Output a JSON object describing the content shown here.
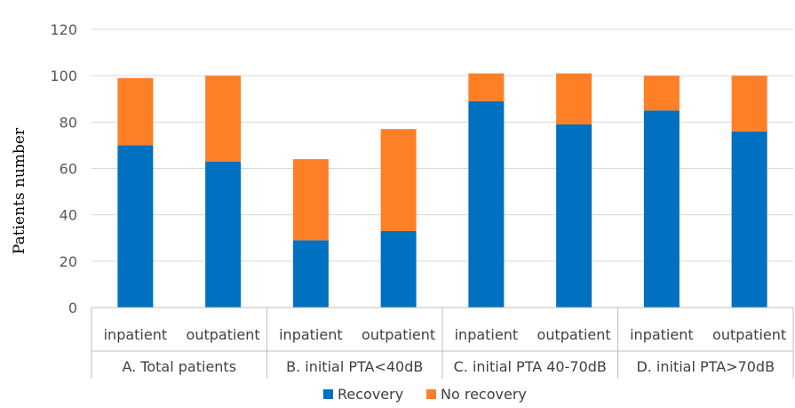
{
  "chart_data": {
    "type": "bar",
    "stacked": true,
    "title": "",
    "ylabel": "Patients number",
    "xlabel": "",
    "ylim": [
      0,
      120
    ],
    "yticks": [
      0,
      20,
      40,
      60,
      80,
      100,
      120
    ],
    "grid": true,
    "legend_position": "bottom",
    "categories": [
      "inpatient",
      "outpatient",
      "inpatient",
      "outpatient",
      "inpatient",
      "outpatient",
      "inpatient",
      "outpatient"
    ],
    "groups": [
      {
        "label": "A. Total patients",
        "span": 2
      },
      {
        "label": "B. initial PTA<40dB",
        "span": 2
      },
      {
        "label": "C. initial PTA 40-70dB",
        "span": 2
      },
      {
        "label": "D. initial PTA>70dB",
        "span": 2
      }
    ],
    "series": [
      {
        "name": "Recovery",
        "color": "#0070C0",
        "values": [
          70,
          63,
          29,
          33,
          89,
          79,
          85,
          76
        ]
      },
      {
        "name": "No recovery",
        "color": "#FF7F27",
        "values": [
          29,
          37,
          35,
          44,
          12,
          22,
          15,
          24
        ]
      }
    ]
  }
}
